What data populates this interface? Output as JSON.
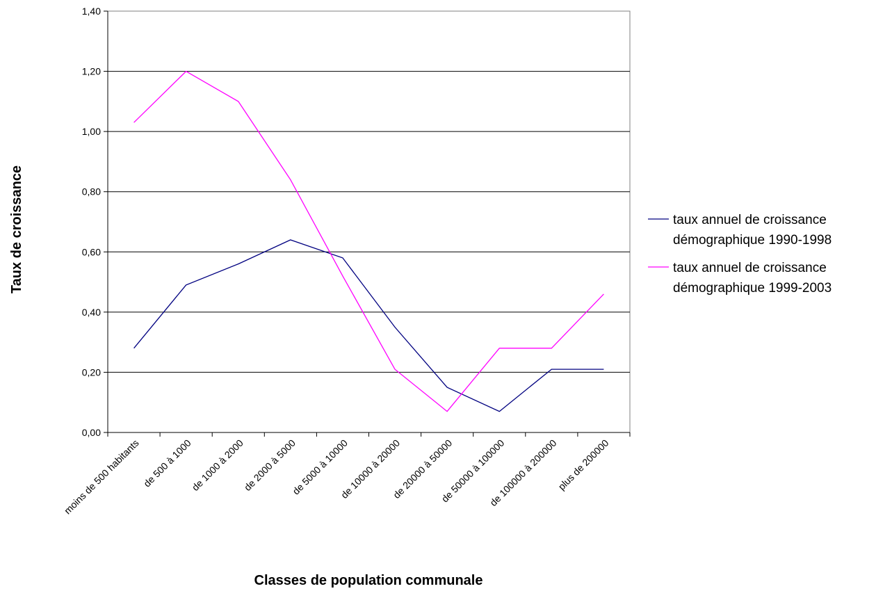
{
  "chart_data": {
    "type": "line",
    "categories": [
      "moins de 500 habitants",
      "de 500 à 1000",
      "de 1000 à 2000",
      "de 2000 à 5000",
      "de 5000 à 10000",
      "de 10000 à 20000",
      "de 20000 à 50000",
      "de 50000 à 100000",
      "de 100000 à 200000",
      "plus de 200000"
    ],
    "series": [
      {
        "name_lines": [
          "taux annuel de croissance",
          "démographique  1990-1998"
        ],
        "color": "#000080",
        "values": [
          0.28,
          0.49,
          0.56,
          0.64,
          0.58,
          0.35,
          0.15,
          0.07,
          0.21,
          0.21
        ]
      },
      {
        "name_lines": [
          "taux annuel de croissance",
          "démographique  1999-2003"
        ],
        "color": "#ff00ff",
        "values": [
          1.03,
          1.2,
          1.1,
          0.84,
          0.52,
          0.21,
          0.07,
          0.28,
          0.28,
          0.46
        ]
      }
    ],
    "xlabel": "Classes de population communale",
    "ylabel": "Taux de croissance",
    "ylim": [
      0,
      1.4
    ],
    "yticks": [
      "0,00",
      "0,20",
      "0,40",
      "0,60",
      "0,80",
      "1,00",
      "1,20",
      "1,40"
    ],
    "grid": true,
    "legend_position": "right"
  }
}
